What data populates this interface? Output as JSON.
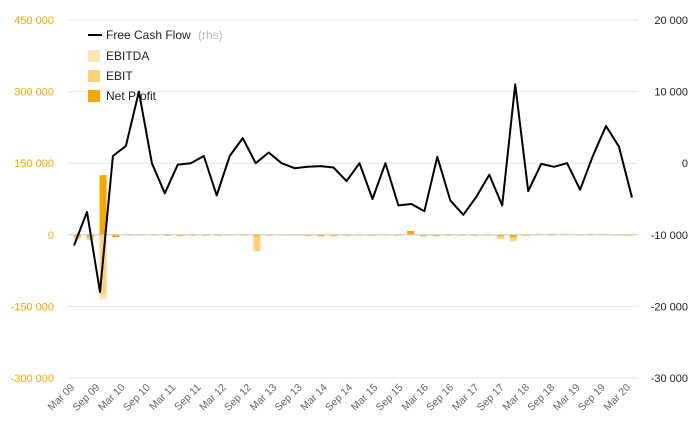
{
  "chart_data": {
    "type": "bar",
    "x_ticks": [
      "Mar 09",
      "Sep 09",
      "Mar 10",
      "Sep 10",
      "Mar 11",
      "Sep 11",
      "Mar 12",
      "Sep 12",
      "Mar 13",
      "Sep 13",
      "Mar 14",
      "Sep 14",
      "Mar 15",
      "Sep 15",
      "Mar 16",
      "Sep 16",
      "Mar 17",
      "Sep 17",
      "Mar 18",
      "Sep 18",
      "Mar 19",
      "Sep 19",
      "Mar 20"
    ],
    "y_left": {
      "min": -300000,
      "max": 450000,
      "ticks": [
        -300000,
        -150000,
        0,
        150000,
        300000,
        450000
      ],
      "tick_labels": [
        "-300 000",
        "-150 000",
        "0",
        "150 000",
        "300 000",
        "450 000"
      ],
      "color": "#f2a900"
    },
    "y_right": {
      "min": -30000,
      "max": 20000,
      "ticks": [
        -30000,
        -20000,
        -10000,
        0,
        10000,
        20000
      ],
      "tick_labels": [
        "-30 000",
        "-20 000",
        "-10 000",
        "0",
        "10 000",
        "20 000"
      ]
    },
    "grid": true,
    "legend_position": "top-left",
    "series": [
      {
        "name": "Free Cash Flow",
        "suffix": "(rhs)",
        "type": "line",
        "axis": "right",
        "color": "#000000",
        "values": [
          -11500,
          -6800,
          -18000,
          1000,
          2400,
          10000,
          0,
          -4200,
          -200,
          0,
          1000,
          -4500,
          1000,
          3500,
          0,
          1500,
          0,
          -700,
          -500,
          -400,
          -600,
          -2500,
          0,
          -5000,
          0,
          -5900,
          -5700,
          -6700,
          900,
          -5200,
          -7200,
          -4700,
          -1600,
          -5900,
          11000,
          -3900,
          -100,
          -500,
          0,
          -3700,
          1100,
          5200,
          2300,
          -4800
        ]
      },
      {
        "name": "EBITDA",
        "type": "bar",
        "axis": "left",
        "color": "#fde6b5",
        "values": [
          -9000,
          -12000,
          -135000,
          -4000,
          1500,
          1500,
          1500,
          -2000,
          -2500,
          -1500,
          -1200,
          0,
          1000,
          1200,
          -14000,
          0,
          1000,
          800,
          -2500,
          -3500,
          -3000,
          -1800,
          0,
          0,
          1200,
          -2000,
          2500,
          -3500,
          -3000,
          -1500,
          -1000,
          -1000,
          -1200,
          -8000,
          -12000,
          0,
          2500,
          3000,
          2500,
          1500,
          2500,
          2000,
          1200,
          0
        ]
      },
      {
        "name": "EBIT",
        "type": "bar",
        "axis": "left",
        "color": "#fdd27a",
        "values": [
          -8000,
          -11000,
          -125000,
          -4500,
          1000,
          1000,
          1000,
          -2200,
          -2800,
          -1800,
          -1300,
          0,
          800,
          1000,
          -34000,
          0,
          800,
          600,
          -2800,
          -3800,
          -3300,
          -2000,
          0,
          0,
          1000,
          -1800,
          2500,
          -3800,
          -3300,
          -1800,
          -1300,
          -1200,
          -1400,
          -8500,
          -13000,
          0,
          2000,
          2500,
          2000,
          1200,
          2000,
          1500,
          800,
          0
        ]
      },
      {
        "name": "Net Profit",
        "type": "bar",
        "axis": "left",
        "color": "#f5a800",
        "values": [
          -3000,
          -4000,
          125000,
          -5000,
          500,
          500,
          500,
          -1500,
          -2000,
          -1500,
          -1000,
          0,
          500,
          500,
          -3000,
          0,
          500,
          400,
          -2000,
          -2500,
          -2000,
          -1200,
          0,
          0,
          600,
          -1200,
          8000,
          -2000,
          -2000,
          -1000,
          -800,
          -800,
          -1000,
          -3000,
          -5000,
          0,
          1000,
          1200,
          1000,
          800,
          1000,
          800,
          500,
          0
        ]
      }
    ]
  }
}
